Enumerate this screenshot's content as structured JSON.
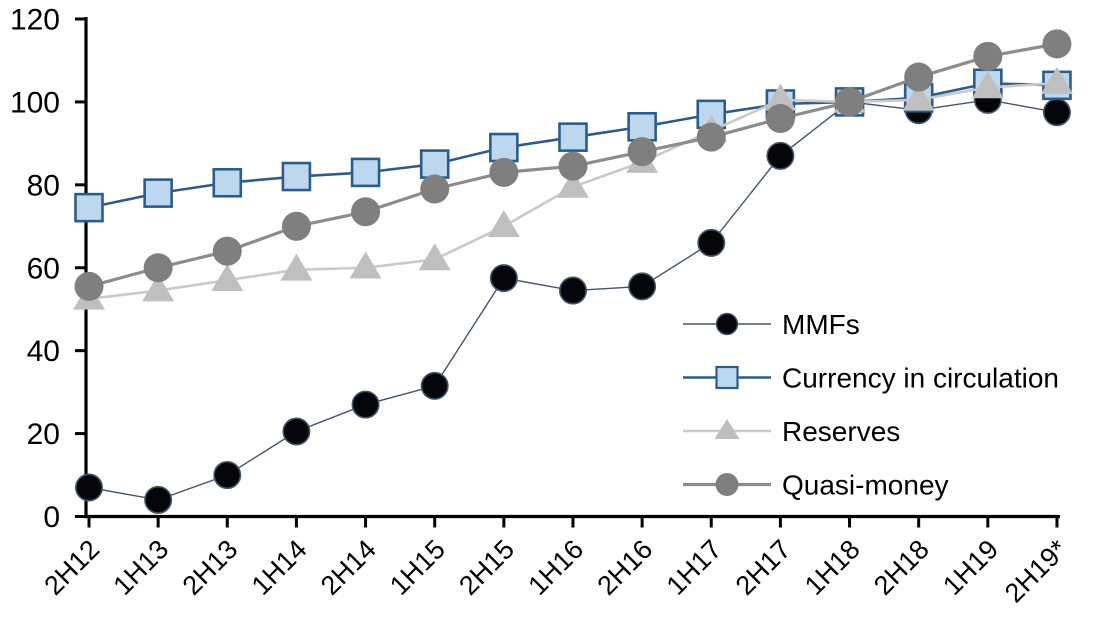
{
  "chart_data": {
    "type": "line",
    "title": "",
    "xlabel": "",
    "ylabel": "",
    "categories": [
      "2H12",
      "1H13",
      "2H13",
      "1H14",
      "2H14",
      "1H15",
      "2H15",
      "1H16",
      "2H16",
      "1H17",
      "2H17",
      "1H18",
      "2H18",
      "1H19",
      "2H19*"
    ],
    "series": [
      {
        "name": "MMFs",
        "marker": "circle",
        "line_color": "#44546A",
        "fill_color": "#06060A",
        "edge_color": "#44546A",
        "values": [
          7,
          4,
          10,
          20.5,
          27,
          31.5,
          57.5,
          54.5,
          55.5,
          66,
          87,
          100,
          98,
          100.5,
          97.5
        ]
      },
      {
        "name": "Currency in circulation",
        "marker": "square",
        "line_color": "#2E5C8A",
        "fill_color": "#BDD7EE",
        "edge_color": "#2E5C8A",
        "values": [
          74.5,
          78,
          80.5,
          82,
          83,
          85,
          89,
          91.5,
          94,
          97,
          99.5,
          100,
          101,
          104.5,
          104
        ]
      },
      {
        "name": "Reserves",
        "marker": "triangle",
        "line_color": "#C9C9C9",
        "fill_color": "#BFBFBF",
        "edge_color": "#C9C9C9",
        "values": [
          52.5,
          54.5,
          57,
          59.5,
          60,
          62,
          70,
          79.5,
          85.5,
          93,
          100.5,
          100,
          100.5,
          103.5,
          104.5
        ]
      },
      {
        "name": "Quasi-money",
        "marker": "circle",
        "line_color": "#8C8C8C",
        "fill_color": "#7F7F7F",
        "edge_color": "#8C8C8C",
        "values": [
          55.5,
          60,
          64,
          70,
          73.5,
          79,
          83,
          84.5,
          88,
          91.5,
          96,
          100,
          106,
          111,
          114
        ]
      }
    ],
    "ylim": [
      0,
      120
    ],
    "y_ticks": [
      0,
      20,
      40,
      60,
      80,
      100,
      120
    ],
    "grid": false,
    "legend": {
      "position": "inside-right",
      "labels": [
        "MMFs",
        "Currency in circulation",
        "Reserves",
        "Quasi-money"
      ]
    },
    "axis_color": "#000000",
    "background": "#FFFFFF"
  }
}
